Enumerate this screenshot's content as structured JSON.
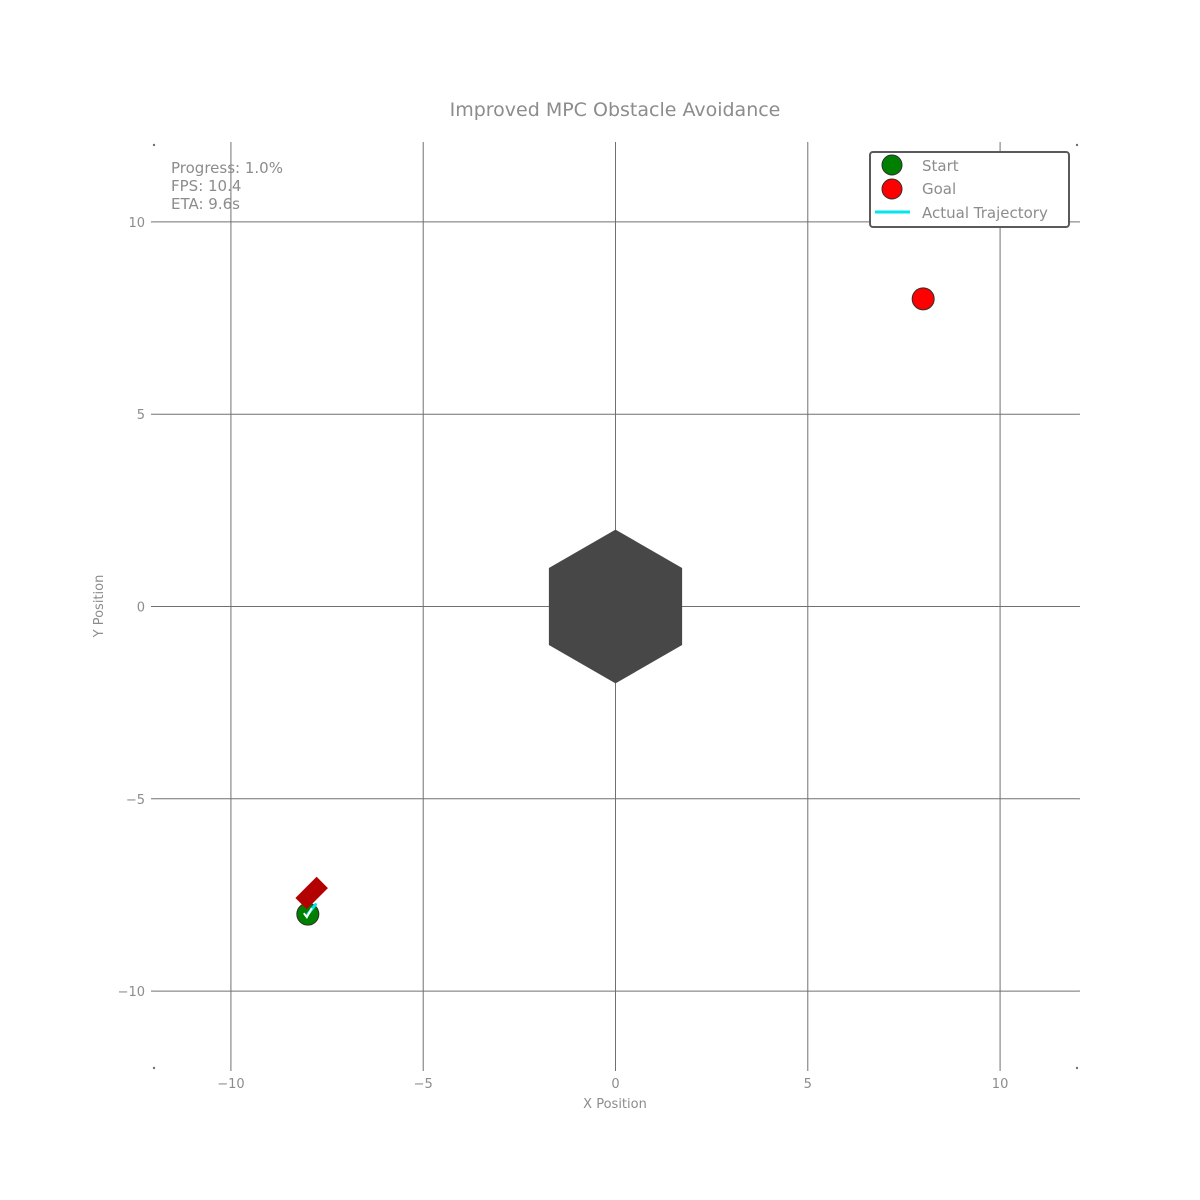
{
  "chart_data": {
    "type": "scatter",
    "title": "Improved MPC Obstacle Avoidance",
    "xlabel": "X Position",
    "ylabel": "Y Position",
    "xlim": [
      -12,
      12
    ],
    "ylim": [
      -12,
      12
    ],
    "xticks": [
      -10,
      -5,
      0,
      5,
      10
    ],
    "yticks": [
      -10,
      -5,
      0,
      5,
      10
    ],
    "xtick_labels": [
      "−10",
      "−5",
      "0",
      "5",
      "10"
    ],
    "ytick_labels": [
      "−10",
      "−5",
      "0",
      "5",
      "10"
    ],
    "grid": true,
    "legend_position": "top-right",
    "status": {
      "progress": "Progress: 1.0%",
      "fps": "FPS: 10.4",
      "eta": "ETA: 9.6s"
    },
    "series": [
      {
        "name": "Start",
        "marker": "circle",
        "color": "#008000",
        "x": [
          -8
        ],
        "y": [
          -8
        ]
      },
      {
        "name": "Goal",
        "marker": "circle",
        "color": "#ff0000",
        "x": [
          8
        ],
        "y": [
          8
        ]
      },
      {
        "name": "Actual Trajectory",
        "marker": "line",
        "color": "#00e5ee",
        "x": [
          -8.0,
          -7.8
        ],
        "y": [
          -8.0,
          -7.75
        ]
      }
    ],
    "obstacle": {
      "shape": "hexagon",
      "center": [
        0,
        0
      ],
      "radius": 2,
      "color": "#474747"
    },
    "vehicle": {
      "shape": "rectangle",
      "x": -7.9,
      "y": -7.45,
      "heading_deg": 45,
      "color": "#b30000"
    },
    "colors": {
      "grid": "#707070",
      "text": "#8c8c8c",
      "legend_border": "#5a5a5a"
    }
  }
}
